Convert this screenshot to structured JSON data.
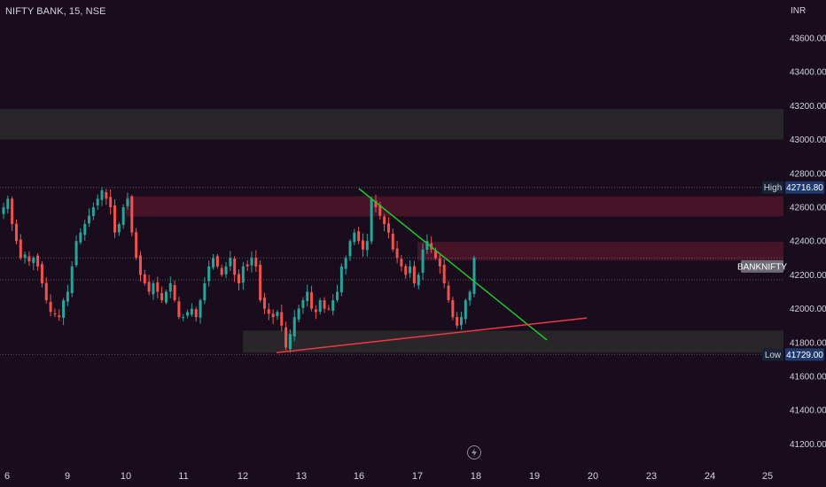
{
  "header": {
    "symbol_title": "NIFTY BANK, 15, NSE",
    "currency": "INR"
  },
  "colors": {
    "background": "#190c1d",
    "up_candle": "#26a69a",
    "down_candle": "#ef5350",
    "support_zone": "#2b2b2b",
    "resistance_zone": "#4a1428",
    "trendline_green": "#1ec82a",
    "trendline_red": "#f23645"
  },
  "chart_data": {
    "type": "candlestick",
    "symbol": "NIFTY BANK",
    "interval": "15",
    "exchange": "NSE",
    "y_range": [
      41100,
      43700
    ],
    "y_ticks": [
      "43600.00",
      "43400.00",
      "43200.00",
      "43000.00",
      "42800.00",
      "42600.00",
      "42400.00",
      "42200.00",
      "42000.00",
      "41800.00",
      "41600.00",
      "41400.00",
      "41200.00"
    ],
    "x_ticks": [
      "6",
      "9",
      "10",
      "11",
      "12",
      "13",
      "16",
      "17",
      "18",
      "19",
      "20",
      "23",
      "24",
      "25"
    ],
    "price_tags": [
      {
        "label": "High",
        "value": "42716.80"
      },
      {
        "label": "BANKNIFTY",
        "value": ""
      },
      {
        "label": "Low",
        "value": "41729.00"
      }
    ],
    "reference_levels": [
      42716.8,
      42300,
      42170,
      41729
    ],
    "zones": [
      {
        "kind": "support",
        "from_date": "6",
        "to_date": "25",
        "y_low": 43000,
        "y_high": 43180
      },
      {
        "kind": "resistance",
        "from_date": "10",
        "to_date": "25",
        "y_low": 42545,
        "y_high": 42665
      },
      {
        "kind": "resistance",
        "from_date": "17",
        "to_date": "25",
        "y_low": 42285,
        "y_high": 42395
      },
      {
        "kind": "support",
        "from_date": "12",
        "to_date": "25",
        "y_low": 41740,
        "y_high": 41870
      }
    ],
    "trendlines": [
      {
        "color": "green",
        "from": {
          "date": "16",
          "price": 42710
        },
        "to": {
          "date": "19",
          "price": 41815
        }
      },
      {
        "color": "red",
        "from": {
          "date": "12",
          "price": 41740
        },
        "to": {
          "date": "20",
          "price": 41945
        }
      }
    ],
    "closes": [
      42600,
      42650,
      42500,
      42400,
      42300,
      42320,
      42280,
      42300,
      42250,
      42150,
      42050,
      41980,
      41970,
      41950,
      42050,
      42100,
      42250,
      42400,
      42450,
      42500,
      42550,
      42600,
      42650,
      42700,
      42650,
      42600,
      42450,
      42500,
      42600,
      42650,
      42450,
      42300,
      42200,
      42150,
      42100,
      42150,
      42100,
      42050,
      42100,
      42150,
      42050,
      41950,
      41950,
      41980,
      42000,
      41950,
      42050,
      42150,
      42250,
      42300,
      42250,
      42200,
      42250,
      42300,
      42200,
      42150,
      42250,
      42250,
      42300,
      42250,
      42050,
      42000,
      41970,
      41950,
      41980,
      41900,
      41770,
      41850,
      41950,
      42000,
      42050,
      42100,
      42000,
      41980,
      42050,
      42000,
      42000,
      42050,
      42100,
      42250,
      42300,
      42400,
      42450,
      42400,
      42350,
      42400,
      42650,
      42600,
      42550,
      42500,
      42450,
      42350,
      42300,
      42250,
      42200,
      42250,
      42150,
      42200,
      42350,
      42400,
      42350,
      42300,
      42250,
      42150,
      42050,
      41950,
      41900,
      41950,
      42050,
      42100,
      42300
    ]
  }
}
